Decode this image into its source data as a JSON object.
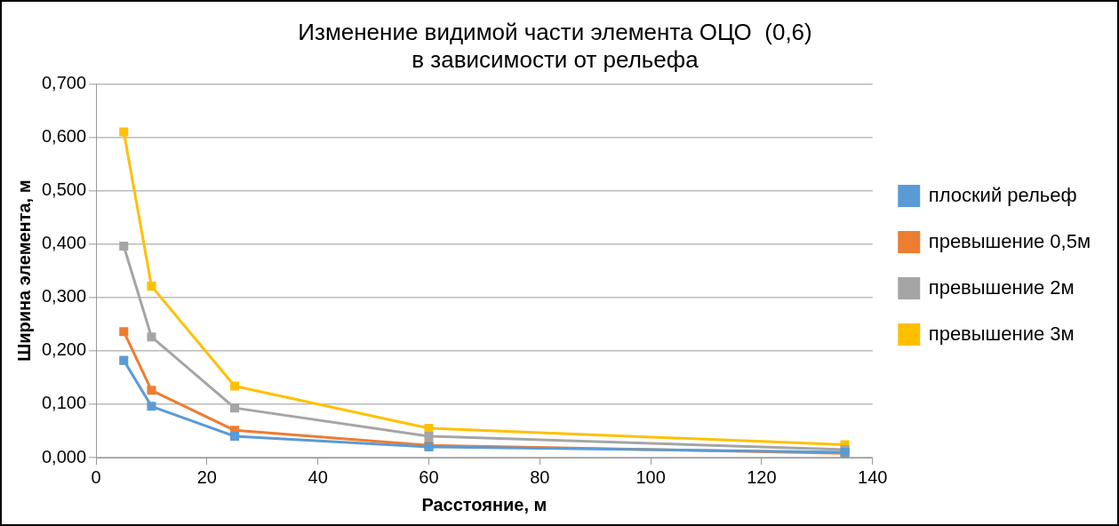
{
  "chart_data": {
    "type": "line",
    "title": [
      "Изменение видимой части элемента ОЦО  (0,6)",
      "в зависимости от рельефа"
    ],
    "xlabel": "Расстояние, м",
    "ylabel": "Ширина элемента, м",
    "x": [
      5,
      10,
      25,
      60,
      135
    ],
    "series": [
      {
        "name": "плоский рельеф",
        "color": "#5b9bd5",
        "values": [
          0.182,
          0.096,
          0.04,
          0.02,
          0.01
        ]
      },
      {
        "name": "превышение 0,5м",
        "color": "#ed7d31",
        "values": [
          0.236,
          0.126,
          0.051,
          0.023,
          0.008
        ]
      },
      {
        "name": "превышение 2м",
        "color": "#a5a5a5",
        "values": [
          0.396,
          0.226,
          0.093,
          0.04,
          0.015
        ]
      },
      {
        "name": "превышение 3м",
        "color": "#ffc000",
        "values": [
          0.61,
          0.321,
          0.134,
          0.055,
          0.024
        ]
      }
    ],
    "xlim": [
      0,
      140
    ],
    "xticks": [
      0,
      20,
      40,
      60,
      80,
      100,
      120,
      140
    ],
    "ylim": [
      0,
      0.7
    ],
    "yticks": [
      {
        "value": 0,
        "label": "0,000"
      },
      {
        "value": 0.1,
        "label": "0,100"
      },
      {
        "value": 0.2,
        "label": "0,200"
      },
      {
        "value": 0.3,
        "label": "0,300"
      },
      {
        "value": 0.4,
        "label": "0,400"
      },
      {
        "value": 0.5,
        "label": "0,500"
      },
      {
        "value": 0.6,
        "label": "0,600"
      },
      {
        "value": 0.7,
        "label": "0,700"
      }
    ],
    "grid": "y",
    "legend": "right",
    "marker": "square",
    "line_style": "solid"
  }
}
